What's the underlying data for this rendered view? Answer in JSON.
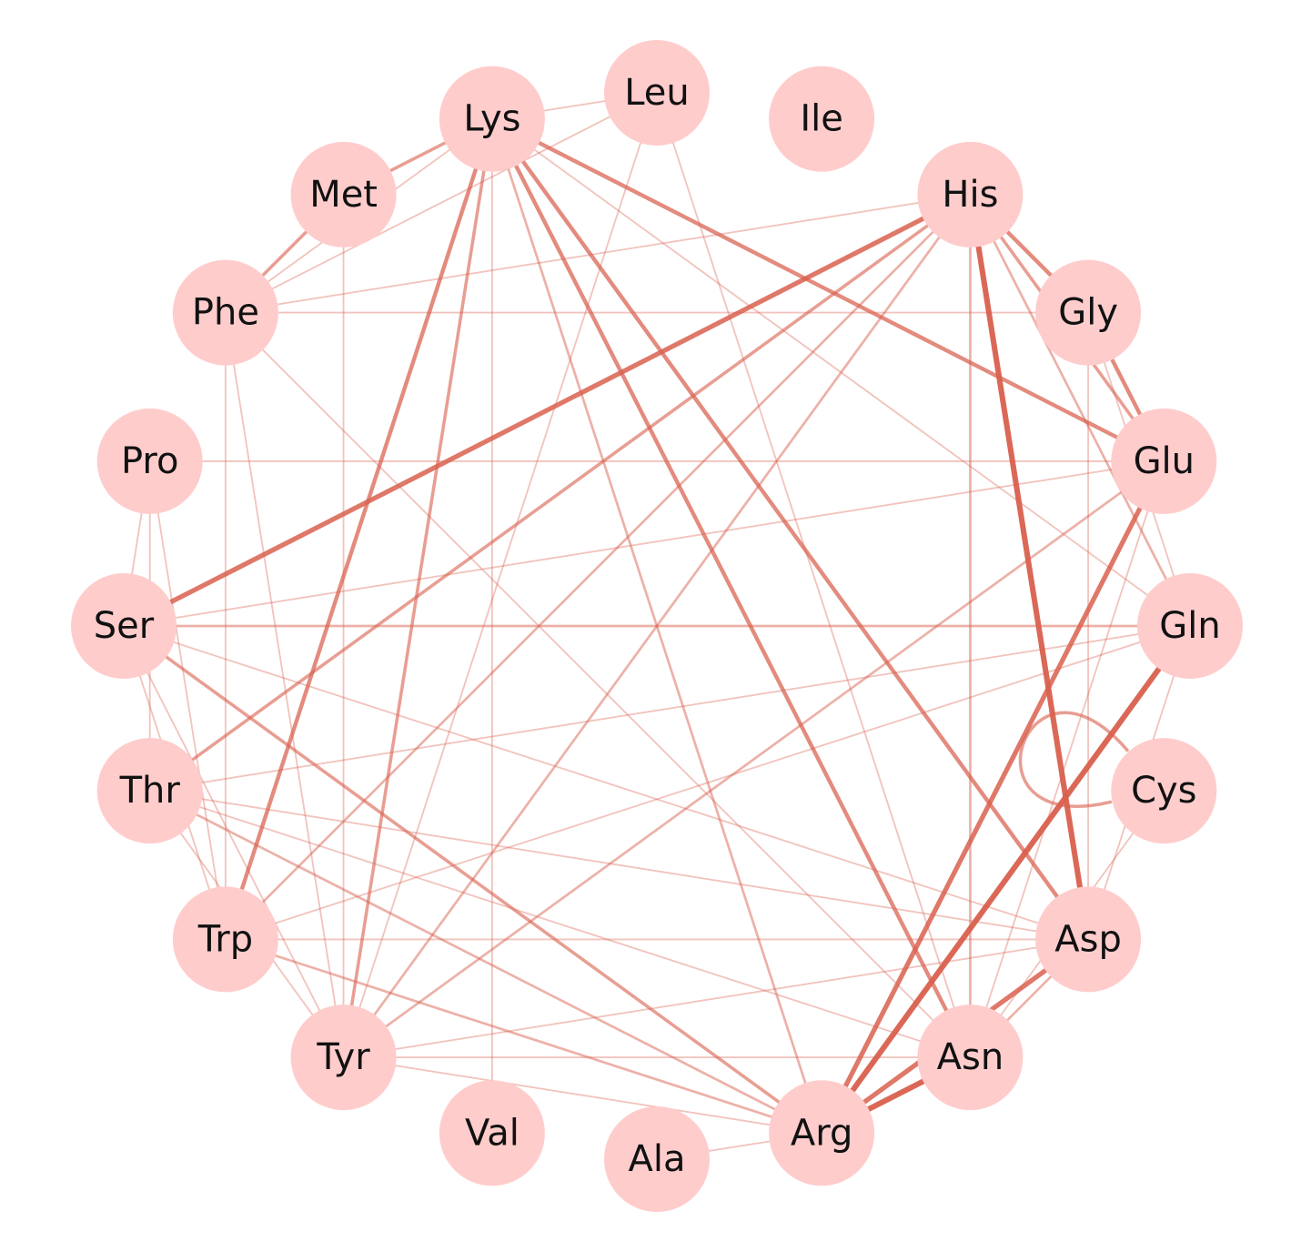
{
  "colors": {
    "node_fill": "#ffcccc",
    "edge": "#d9604e",
    "label": "#111111",
    "background": "#ffffff"
  },
  "nodes": [
    {
      "id": "Leu",
      "label": "Leu"
    },
    {
      "id": "Ile",
      "label": "Ile"
    },
    {
      "id": "His",
      "label": "His"
    },
    {
      "id": "Gly",
      "label": "Gly"
    },
    {
      "id": "Glu",
      "label": "Glu"
    },
    {
      "id": "Gln",
      "label": "Gln"
    },
    {
      "id": "Cys",
      "label": "Cys"
    },
    {
      "id": "Asp",
      "label": "Asp"
    },
    {
      "id": "Asn",
      "label": "Asn"
    },
    {
      "id": "Arg",
      "label": "Arg"
    },
    {
      "id": "Ala",
      "label": "Ala"
    },
    {
      "id": "Val",
      "label": "Val"
    },
    {
      "id": "Tyr",
      "label": "Tyr"
    },
    {
      "id": "Trp",
      "label": "Trp"
    },
    {
      "id": "Thr",
      "label": "Thr"
    },
    {
      "id": "Ser",
      "label": "Ser"
    },
    {
      "id": "Pro",
      "label": "Pro"
    },
    {
      "id": "Phe",
      "label": "Phe"
    },
    {
      "id": "Met",
      "label": "Met"
    },
    {
      "id": "Lys",
      "label": "Lys"
    }
  ],
  "edges": [
    {
      "source": "Lys",
      "target": "Met",
      "weight": 3
    },
    {
      "source": "Met",
      "target": "Phe",
      "weight": 3
    },
    {
      "source": "Lys",
      "target": "Trp",
      "weight": 4
    },
    {
      "source": "Lys",
      "target": "Tyr",
      "weight": 3
    },
    {
      "source": "Lys",
      "target": "Asn",
      "weight": 4
    },
    {
      "source": "Lys",
      "target": "Asp",
      "weight": 4
    },
    {
      "source": "Lys",
      "target": "Glu",
      "weight": 4
    },
    {
      "source": "Lys",
      "target": "Arg",
      "weight": 2
    },
    {
      "source": "Lys",
      "target": "Phe",
      "weight": 1
    },
    {
      "source": "Lys",
      "target": "Gln",
      "weight": 1
    },
    {
      "source": "Lys",
      "target": "Leu",
      "weight": 1
    },
    {
      "source": "Lys",
      "target": "Val",
      "weight": 1
    },
    {
      "source": "His",
      "target": "Ser",
      "weight": 5
    },
    {
      "source": "His",
      "target": "Thr",
      "weight": 3
    },
    {
      "source": "His",
      "target": "Trp",
      "weight": 2
    },
    {
      "source": "His",
      "target": "Tyr",
      "weight": 2
    },
    {
      "source": "His",
      "target": "Asp",
      "weight": 6
    },
    {
      "source": "His",
      "target": "Asn",
      "weight": 2
    },
    {
      "source": "His",
      "target": "Gly",
      "weight": 4
    },
    {
      "source": "His",
      "target": "Glu",
      "weight": 3
    },
    {
      "source": "His",
      "target": "Gln",
      "weight": 2
    },
    {
      "source": "His",
      "target": "Phe",
      "weight": 1
    },
    {
      "source": "Gly",
      "target": "Glu",
      "weight": 4
    },
    {
      "source": "Gly",
      "target": "Gln",
      "weight": 1
    },
    {
      "source": "Gly",
      "target": "Asp",
      "weight": 1
    },
    {
      "source": "Gly",
      "target": "Phe",
      "weight": 1
    },
    {
      "source": "Glu",
      "target": "Arg",
      "weight": 5
    },
    {
      "source": "Glu",
      "target": "Asn",
      "weight": 1
    },
    {
      "source": "Glu",
      "target": "Tyr",
      "weight": 2
    },
    {
      "source": "Glu",
      "target": "Ser",
      "weight": 1
    },
    {
      "source": "Glu",
      "target": "Pro",
      "weight": 1
    },
    {
      "source": "Gln",
      "target": "Arg",
      "weight": 6
    },
    {
      "source": "Gln",
      "target": "Ser",
      "weight": 2
    },
    {
      "source": "Gln",
      "target": "Trp",
      "weight": 1
    },
    {
      "source": "Gln",
      "target": "Asp",
      "weight": 1
    },
    {
      "source": "Gln",
      "target": "Thr",
      "weight": 1
    },
    {
      "source": "Cys",
      "target": "Cys",
      "weight": 3
    },
    {
      "source": "Cys",
      "target": "Asn",
      "weight": 1
    },
    {
      "source": "Asp",
      "target": "Arg",
      "weight": 5
    },
    {
      "source": "Asp",
      "target": "Asn",
      "weight": 2
    },
    {
      "source": "Asp",
      "target": "Ser",
      "weight": 1
    },
    {
      "source": "Asp",
      "target": "Thr",
      "weight": 1
    },
    {
      "source": "Asp",
      "target": "Trp",
      "weight": 1
    },
    {
      "source": "Asp",
      "target": "Tyr",
      "weight": 1
    },
    {
      "source": "Asn",
      "target": "Arg",
      "weight": 6
    },
    {
      "source": "Asn",
      "target": "Tyr",
      "weight": 1
    },
    {
      "source": "Asn",
      "target": "Thr",
      "weight": 1
    },
    {
      "source": "Asn",
      "target": "Phe",
      "weight": 1
    },
    {
      "source": "Arg",
      "target": "Ser",
      "weight": 3
    },
    {
      "source": "Arg",
      "target": "Thr",
      "weight": 2
    },
    {
      "source": "Arg",
      "target": "Trp",
      "weight": 2
    },
    {
      "source": "Arg",
      "target": "Tyr",
      "weight": 1
    },
    {
      "source": "Arg",
      "target": "Ala",
      "weight": 1
    },
    {
      "source": "Ser",
      "target": "Trp",
      "weight": 1
    },
    {
      "source": "Ser",
      "target": "Tyr",
      "weight": 1
    },
    {
      "source": "Ser",
      "target": "Pro",
      "weight": 1
    },
    {
      "source": "Thr",
      "target": "Tyr",
      "weight": 1
    },
    {
      "source": "Thr",
      "target": "Pro",
      "weight": 1
    },
    {
      "source": "Trp",
      "target": "Pro",
      "weight": 1
    },
    {
      "source": "Trp",
      "target": "Phe",
      "weight": 1
    },
    {
      "source": "Tyr",
      "target": "Phe",
      "weight": 1
    },
    {
      "source": "Tyr",
      "target": "Met",
      "weight": 1
    },
    {
      "source": "Leu",
      "target": "Tyr",
      "weight": 1
    },
    {
      "source": "Leu",
      "target": "Asn",
      "weight": 1
    },
    {
      "source": "Leu",
      "target": "Phe",
      "weight": 1
    }
  ]
}
